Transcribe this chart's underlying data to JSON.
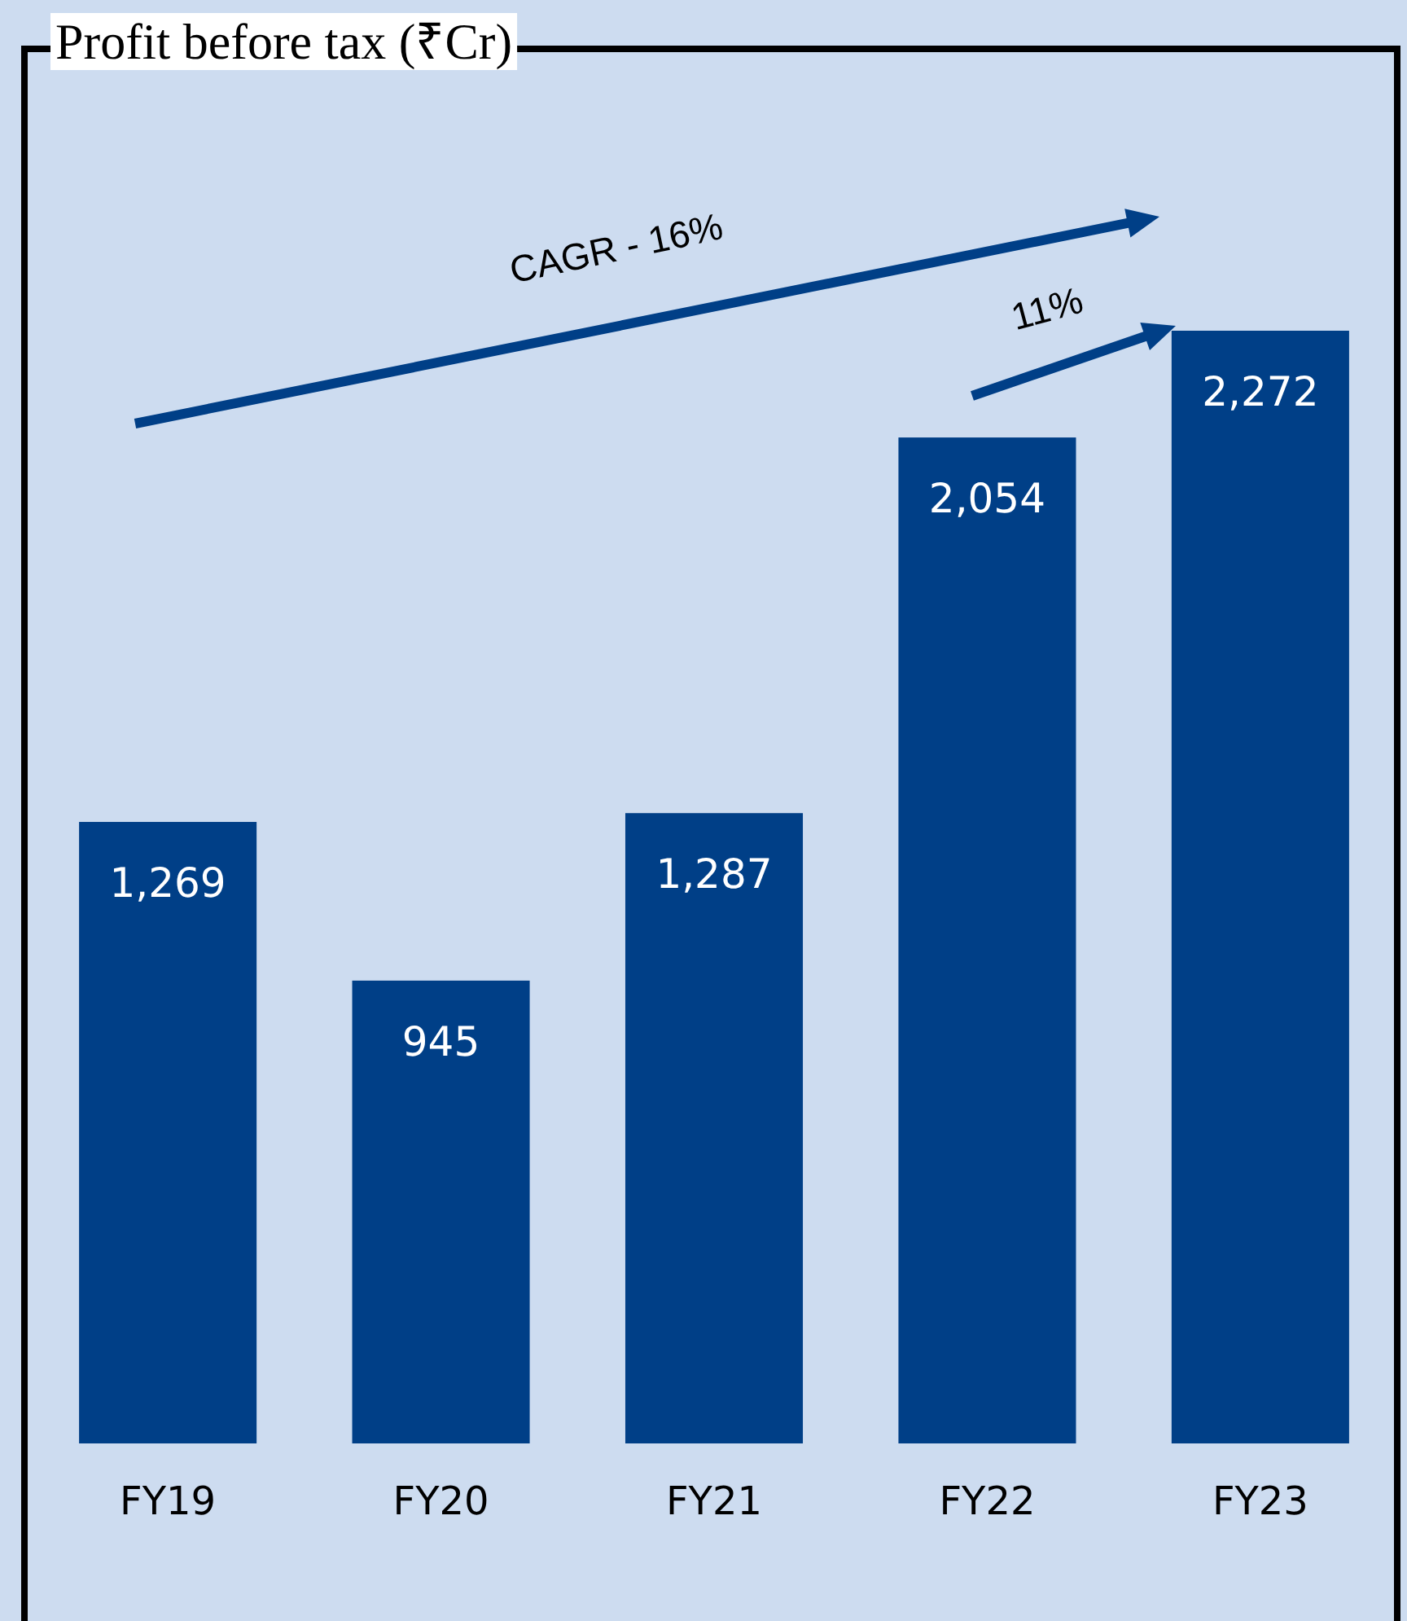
{
  "chart_data": {
    "type": "bar",
    "title": "Profit before tax (₹Cr)",
    "categories": [
      "FY19",
      "FY20",
      "FY21",
      "FY22",
      "FY23"
    ],
    "values": [
      1269,
      945,
      1287,
      2054,
      2272
    ],
    "color": "#003f87",
    "value_labels": [
      "1,269",
      "945",
      "1,287",
      "2,054",
      "2,272"
    ],
    "annotations": [
      "CAGR - 16%",
      "11%"
    ]
  }
}
